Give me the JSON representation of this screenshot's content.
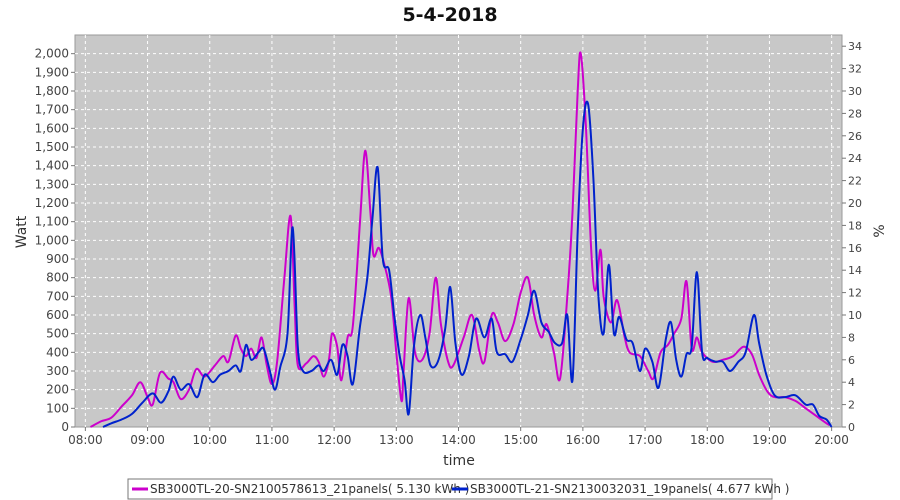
{
  "chart_data": {
    "type": "line",
    "title": "5-4-2018",
    "xlabel": "time",
    "ylabel": "Watt",
    "y2label": "%",
    "xlim": [
      "07:50",
      "20:10"
    ],
    "ylim": [
      0,
      2100
    ],
    "y2lim": [
      0,
      35
    ],
    "x_ticks": [
      "08:00",
      "09:00",
      "10:00",
      "11:00",
      "12:00",
      "13:00",
      "14:00",
      "15:00",
      "16:00",
      "17:00",
      "18:00",
      "19:00",
      "20:00"
    ],
    "y_ticks": [
      "0",
      "100",
      "200",
      "300",
      "400",
      "500",
      "600",
      "700",
      "800",
      "900",
      "1,000",
      "1,100",
      "1,200",
      "1,300",
      "1,400",
      "1,500",
      "1,600",
      "1,700",
      "1,800",
      "1,900",
      "2,000"
    ],
    "y2_ticks": [
      "0",
      "2",
      "4",
      "6",
      "8",
      "10",
      "12",
      "14",
      "16",
      "18",
      "20",
      "22",
      "24",
      "26",
      "28",
      "30",
      "32",
      "34"
    ],
    "grid": true,
    "legend_position": "bottom",
    "series": [
      {
        "name": "SB3000TL-20-SN2100578613_21panels( 5.130 kWh )",
        "color": "#cc00cc",
        "points": [
          [
            "08:05",
            0
          ],
          [
            "08:15",
            30
          ],
          [
            "08:25",
            50
          ],
          [
            "08:35",
            110
          ],
          [
            "08:45",
            170
          ],
          [
            "08:53",
            240
          ],
          [
            "09:00",
            160
          ],
          [
            "09:05",
            120
          ],
          [
            "09:12",
            290
          ],
          [
            "09:20",
            260
          ],
          [
            "09:25",
            240
          ],
          [
            "09:32",
            150
          ],
          [
            "09:40",
            200
          ],
          [
            "09:47",
            310
          ],
          [
            "09:55",
            270
          ],
          [
            "10:05",
            330
          ],
          [
            "10:13",
            380
          ],
          [
            "10:18",
            350
          ],
          [
            "10:25",
            490
          ],
          [
            "10:30",
            420
          ],
          [
            "10:35",
            380
          ],
          [
            "10:40",
            420
          ],
          [
            "10:45",
            370
          ],
          [
            "10:50",
            480
          ],
          [
            "10:55",
            330
          ],
          [
            "11:00",
            230
          ],
          [
            "11:05",
            350
          ],
          [
            "11:12",
            800
          ],
          [
            "11:18",
            1130
          ],
          [
            "11:22",
            640
          ],
          [
            "11:25",
            330
          ],
          [
            "11:33",
            340
          ],
          [
            "11:40",
            380
          ],
          [
            "11:45",
            350
          ],
          [
            "11:50",
            270
          ],
          [
            "11:55",
            360
          ],
          [
            "11:58",
            500
          ],
          [
            "12:03",
            430
          ],
          [
            "12:07",
            250
          ],
          [
            "12:13",
            480
          ],
          [
            "12:18",
            540
          ],
          [
            "12:25",
            1100
          ],
          [
            "12:30",
            1480
          ],
          [
            "12:35",
            1150
          ],
          [
            "12:38",
            920
          ],
          [
            "12:43",
            960
          ],
          [
            "12:48",
            880
          ],
          [
            "12:55",
            700
          ],
          [
            "13:00",
            400
          ],
          [
            "13:05",
            140
          ],
          [
            "13:07",
            300
          ],
          [
            "13:12",
            690
          ],
          [
            "13:18",
            400
          ],
          [
            "13:25",
            360
          ],
          [
            "13:32",
            500
          ],
          [
            "13:38",
            800
          ],
          [
            "13:43",
            550
          ],
          [
            "13:50",
            350
          ],
          [
            "13:55",
            330
          ],
          [
            "14:05",
            480
          ],
          [
            "14:13",
            600
          ],
          [
            "14:20",
            410
          ],
          [
            "14:25",
            350
          ],
          [
            "14:32",
            600
          ],
          [
            "14:38",
            560
          ],
          [
            "14:45",
            460
          ],
          [
            "14:53",
            550
          ],
          [
            "15:00",
            720
          ],
          [
            "15:07",
            800
          ],
          [
            "15:13",
            600
          ],
          [
            "15:20",
            480
          ],
          [
            "15:25",
            550
          ],
          [
            "15:32",
            400
          ],
          [
            "15:38",
            260
          ],
          [
            "15:45",
            700
          ],
          [
            "15:50",
            1150
          ],
          [
            "15:55",
            1800
          ],
          [
            "15:58",
            2000
          ],
          [
            "16:03",
            1600
          ],
          [
            "16:08",
            950
          ],
          [
            "16:12",
            730
          ],
          [
            "16:17",
            950
          ],
          [
            "16:20",
            700
          ],
          [
            "16:27",
            560
          ],
          [
            "16:33",
            680
          ],
          [
            "16:40",
            490
          ],
          [
            "16:45",
            400
          ],
          [
            "16:55",
            380
          ],
          [
            "17:03",
            300
          ],
          [
            "17:08",
            260
          ],
          [
            "17:15",
            400
          ],
          [
            "17:22",
            440
          ],
          [
            "17:28",
            500
          ],
          [
            "17:35",
            580
          ],
          [
            "17:40",
            780
          ],
          [
            "17:45",
            420
          ],
          [
            "17:50",
            480
          ],
          [
            "17:55",
            400
          ],
          [
            "18:05",
            350
          ],
          [
            "18:15",
            360
          ],
          [
            "18:25",
            380
          ],
          [
            "18:35",
            430
          ],
          [
            "18:43",
            390
          ],
          [
            "18:50",
            280
          ],
          [
            "18:58",
            190
          ],
          [
            "19:05",
            160
          ],
          [
            "19:15",
            160
          ],
          [
            "19:25",
            140
          ],
          [
            "19:35",
            100
          ],
          [
            "19:45",
            60
          ],
          [
            "19:55",
            20
          ],
          [
            "19:58",
            10
          ]
        ]
      },
      {
        "name": "SB3000TL-21-SN2130032031_19panels( 4.677 kWh )",
        "color": "#0022cc",
        "points": [
          [
            "08:17",
            0
          ],
          [
            "08:25",
            20
          ],
          [
            "08:35",
            40
          ],
          [
            "08:45",
            70
          ],
          [
            "08:55",
            130
          ],
          [
            "09:05",
            180
          ],
          [
            "09:13",
            130
          ],
          [
            "09:20",
            190
          ],
          [
            "09:25",
            270
          ],
          [
            "09:32",
            200
          ],
          [
            "09:40",
            230
          ],
          [
            "09:48",
            160
          ],
          [
            "09:55",
            280
          ],
          [
            "10:03",
            240
          ],
          [
            "10:10",
            280
          ],
          [
            "10:18",
            300
          ],
          [
            "10:25",
            330
          ],
          [
            "10:30",
            300
          ],
          [
            "10:35",
            440
          ],
          [
            "10:40",
            360
          ],
          [
            "10:47",
            400
          ],
          [
            "10:52",
            420
          ],
          [
            "10:58",
            300
          ],
          [
            "11:03",
            200
          ],
          [
            "11:08",
            320
          ],
          [
            "11:15",
            500
          ],
          [
            "11:20",
            1070
          ],
          [
            "11:25",
            430
          ],
          [
            "11:30",
            300
          ],
          [
            "11:38",
            300
          ],
          [
            "11:45",
            330
          ],
          [
            "11:50",
            300
          ],
          [
            "11:57",
            360
          ],
          [
            "12:03",
            280
          ],
          [
            "12:08",
            440
          ],
          [
            "12:13",
            380
          ],
          [
            "12:18",
            230
          ],
          [
            "12:25",
            540
          ],
          [
            "12:32",
            800
          ],
          [
            "12:37",
            1120
          ],
          [
            "12:42",
            1390
          ],
          [
            "12:47",
            900
          ],
          [
            "12:53",
            840
          ],
          [
            "12:58",
            600
          ],
          [
            "13:03",
            390
          ],
          [
            "13:08",
            250
          ],
          [
            "13:12",
            70
          ],
          [
            "13:17",
            430
          ],
          [
            "13:23",
            600
          ],
          [
            "13:28",
            480
          ],
          [
            "13:33",
            330
          ],
          [
            "13:40",
            350
          ],
          [
            "13:47",
            520
          ],
          [
            "13:52",
            750
          ],
          [
            "13:57",
            450
          ],
          [
            "14:03",
            280
          ],
          [
            "14:10",
            380
          ],
          [
            "14:17",
            580
          ],
          [
            "14:25",
            480
          ],
          [
            "14:32",
            580
          ],
          [
            "14:37",
            400
          ],
          [
            "14:45",
            390
          ],
          [
            "14:52",
            350
          ],
          [
            "15:00",
            470
          ],
          [
            "15:07",
            600
          ],
          [
            "15:13",
            730
          ],
          [
            "15:20",
            560
          ],
          [
            "15:27",
            510
          ],
          [
            "15:33",
            450
          ],
          [
            "15:40",
            450
          ],
          [
            "15:45",
            600
          ],
          [
            "15:50",
            250
          ],
          [
            "15:55",
            1050
          ],
          [
            "16:00",
            1600
          ],
          [
            "16:05",
            1730
          ],
          [
            "16:10",
            1350
          ],
          [
            "16:15",
            700
          ],
          [
            "16:20",
            500
          ],
          [
            "16:25",
            870
          ],
          [
            "16:30",
            500
          ],
          [
            "16:35",
            590
          ],
          [
            "16:42",
            470
          ],
          [
            "16:48",
            450
          ],
          [
            "16:55",
            300
          ],
          [
            "17:00",
            420
          ],
          [
            "17:07",
            350
          ],
          [
            "17:13",
            210
          ],
          [
            "17:20",
            470
          ],
          [
            "17:25",
            560
          ],
          [
            "17:30",
            360
          ],
          [
            "17:35",
            270
          ],
          [
            "17:40",
            390
          ],
          [
            "17:45",
            430
          ],
          [
            "17:50",
            830
          ],
          [
            "17:55",
            400
          ],
          [
            "18:00",
            370
          ],
          [
            "18:08",
            350
          ],
          [
            "18:15",
            350
          ],
          [
            "18:22",
            300
          ],
          [
            "18:30",
            350
          ],
          [
            "18:37",
            400
          ],
          [
            "18:45",
            600
          ],
          [
            "18:50",
            450
          ],
          [
            "18:57",
            280
          ],
          [
            "19:05",
            170
          ],
          [
            "19:15",
            160
          ],
          [
            "19:25",
            170
          ],
          [
            "19:35",
            120
          ],
          [
            "19:42",
            120
          ],
          [
            "19:48",
            60
          ],
          [
            "19:55",
            40
          ],
          [
            "20:00",
            0
          ]
        ]
      }
    ]
  }
}
